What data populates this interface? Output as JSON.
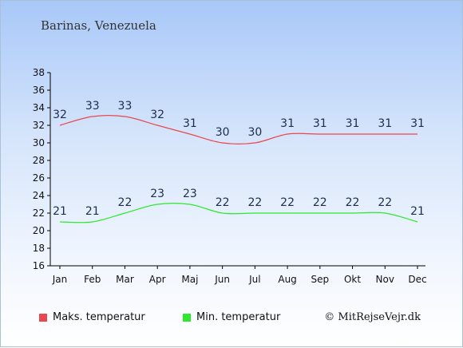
{
  "location": "Barinas, Venezuela",
  "credit": "© MitRejseVejr.dk",
  "colors": {
    "max": "#e8484e",
    "min": "#2ee82e"
  },
  "chart_data": {
    "type": "line",
    "categories": [
      "Jan",
      "Feb",
      "Mar",
      "Apr",
      "Maj",
      "Jun",
      "Jul",
      "Aug",
      "Sep",
      "Okt",
      "Nov",
      "Dec"
    ],
    "series": [
      {
        "name": "Maks. temperatur",
        "values": [
          32,
          33,
          33,
          32,
          31,
          30,
          30,
          31,
          31,
          31,
          31,
          31
        ]
      },
      {
        "name": "Min. temperatur",
        "values": [
          21,
          21,
          22,
          23,
          23,
          22,
          22,
          22,
          22,
          22,
          22,
          21
        ]
      }
    ],
    "ylim": [
      16,
      38
    ],
    "yticks": [
      16,
      18,
      20,
      22,
      24,
      26,
      28,
      30,
      32,
      34,
      36,
      38
    ],
    "grid": false,
    "legend": "bottom"
  }
}
